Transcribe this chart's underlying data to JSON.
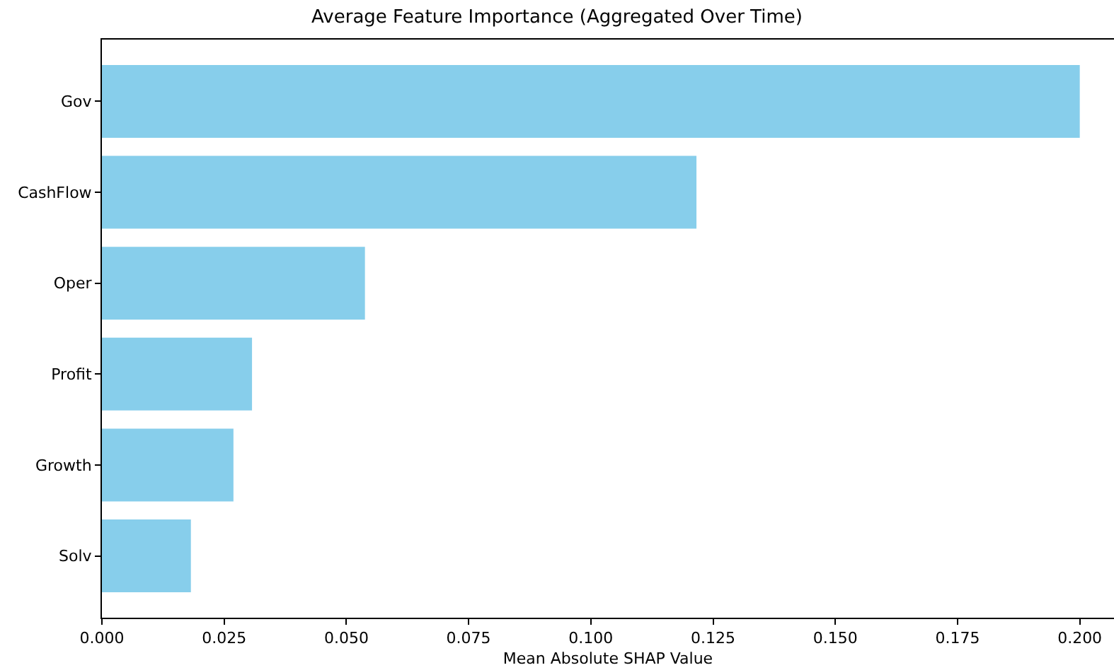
{
  "chart_data": {
    "type": "bar",
    "orientation": "horizontal",
    "title": "Average Feature Importance (Aggregated Over Time)",
    "xlabel": "Mean Absolute SHAP Value",
    "categories": [
      "Gov",
      "CashFlow",
      "Oper",
      "Profit",
      "Growth",
      "Solv"
    ],
    "values": [
      0.2,
      0.1216,
      0.0538,
      0.0307,
      0.0269,
      0.0182
    ],
    "color": "#87ceeb",
    "xlim": [
      0,
      0.207
    ],
    "xticks": [
      {
        "value": 0,
        "label": "0.000"
      },
      {
        "value": 0.025,
        "label": "0.025"
      },
      {
        "value": 0.05,
        "label": "0.050"
      },
      {
        "value": 0.075,
        "label": "0.075"
      },
      {
        "value": 0.1,
        "label": "0.100"
      },
      {
        "value": 0.125,
        "label": "0.125"
      },
      {
        "value": 0.15,
        "label": "0.150"
      },
      {
        "value": 0.175,
        "label": "0.175"
      },
      {
        "value": 0.2,
        "label": "0.200"
      }
    ],
    "grid": false,
    "legend": false
  }
}
